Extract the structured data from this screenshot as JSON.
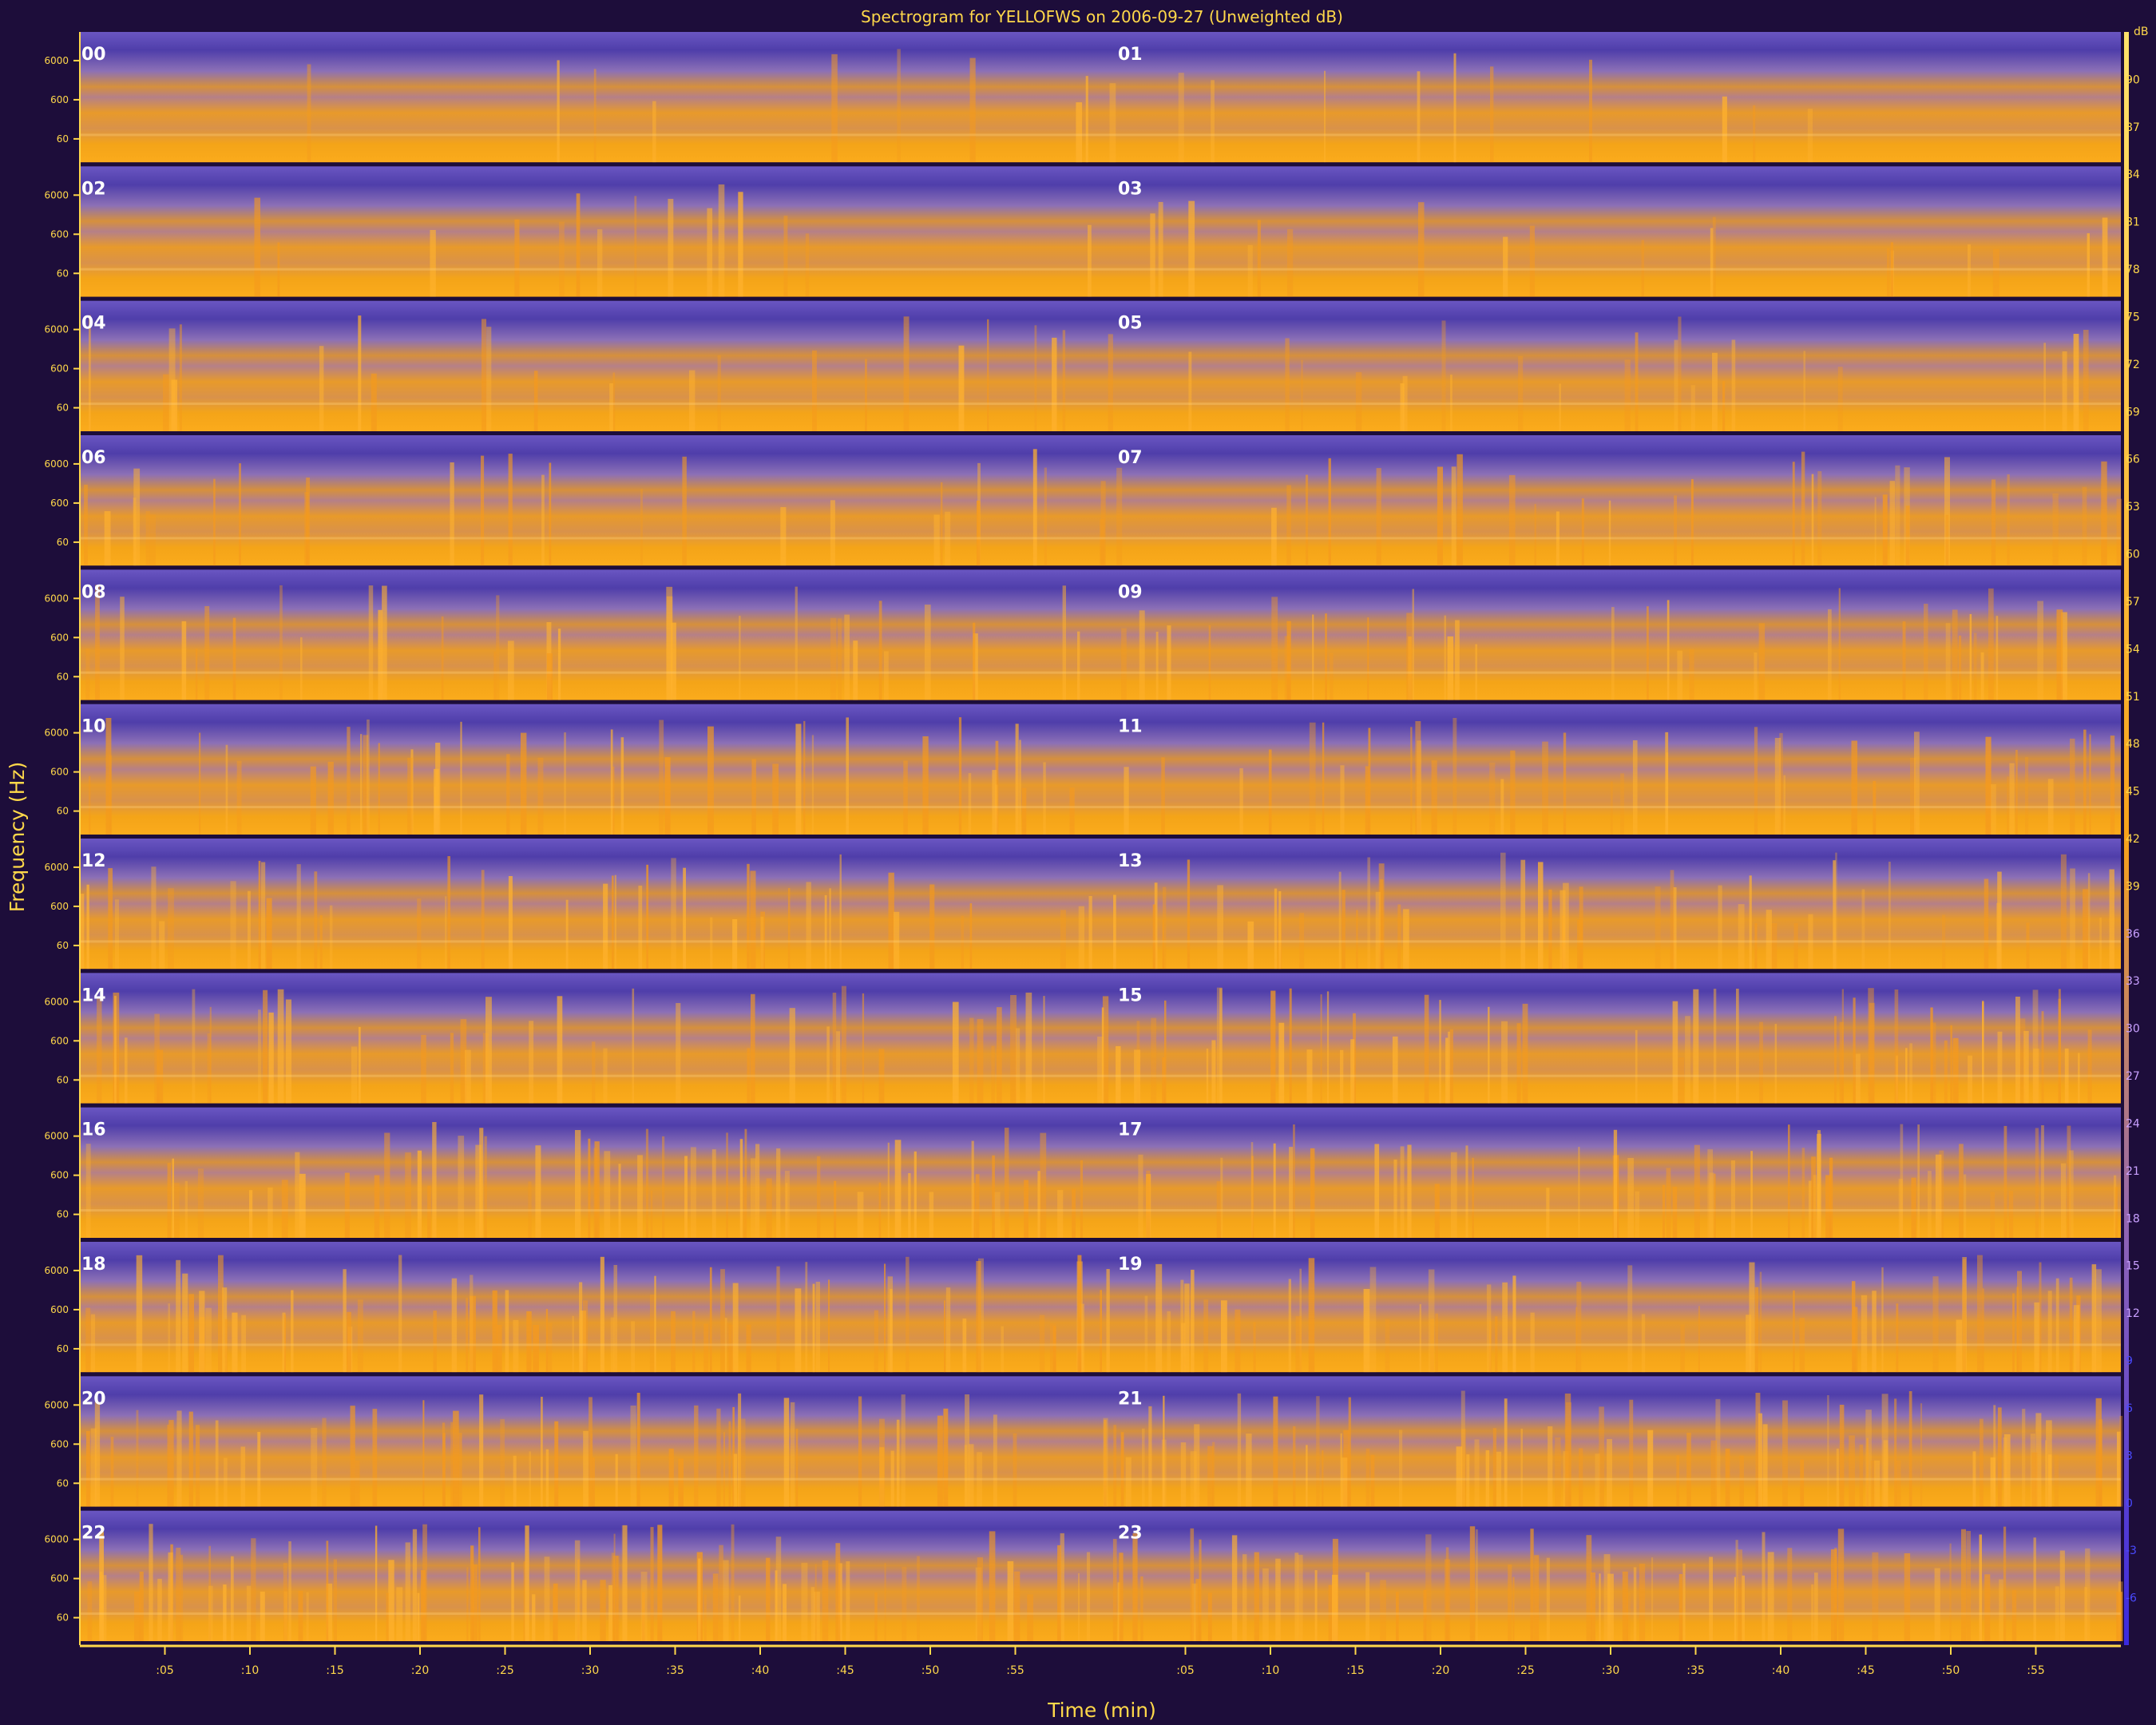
{
  "chart_data": {
    "type": "heatmap",
    "title": "Spectrogram for YELLOFWS on 2006-09-27 (Unweighted dB)",
    "xlabel": "Time (min)",
    "ylabel": "Frequency (Hz)",
    "colorbar_unit": "dB",
    "x_ticks": [
      ":05",
      ":10",
      ":15",
      ":20",
      ":25",
      ":30",
      ":35",
      ":40",
      ":45",
      ":50",
      ":55"
    ],
    "freq_ticks": [
      "6000",
      "600",
      "60"
    ],
    "hours": [
      "00",
      "01",
      "02",
      "03",
      "04",
      "05",
      "06",
      "07",
      "08",
      "09",
      "10",
      "11",
      "12",
      "13",
      "14",
      "15",
      "16",
      "17",
      "18",
      "19",
      "20",
      "21",
      "22",
      "23"
    ],
    "colorbar_ticks": [
      90,
      87,
      84,
      81,
      78,
      75,
      72,
      69,
      66,
      63,
      60,
      57,
      54,
      51,
      48,
      45,
      42,
      39,
      36,
      33,
      30,
      27,
      24,
      21,
      18,
      15,
      12,
      9,
      6,
      3,
      0,
      -3,
      -6
    ],
    "colorbar_range": [
      -9,
      93
    ],
    "colors": {
      "low": "#5b49b3",
      "mid": "#f09a18",
      "high": "#ffcf6a",
      "label": "#ffd84a",
      "background": "#1d0d3a"
    }
  }
}
